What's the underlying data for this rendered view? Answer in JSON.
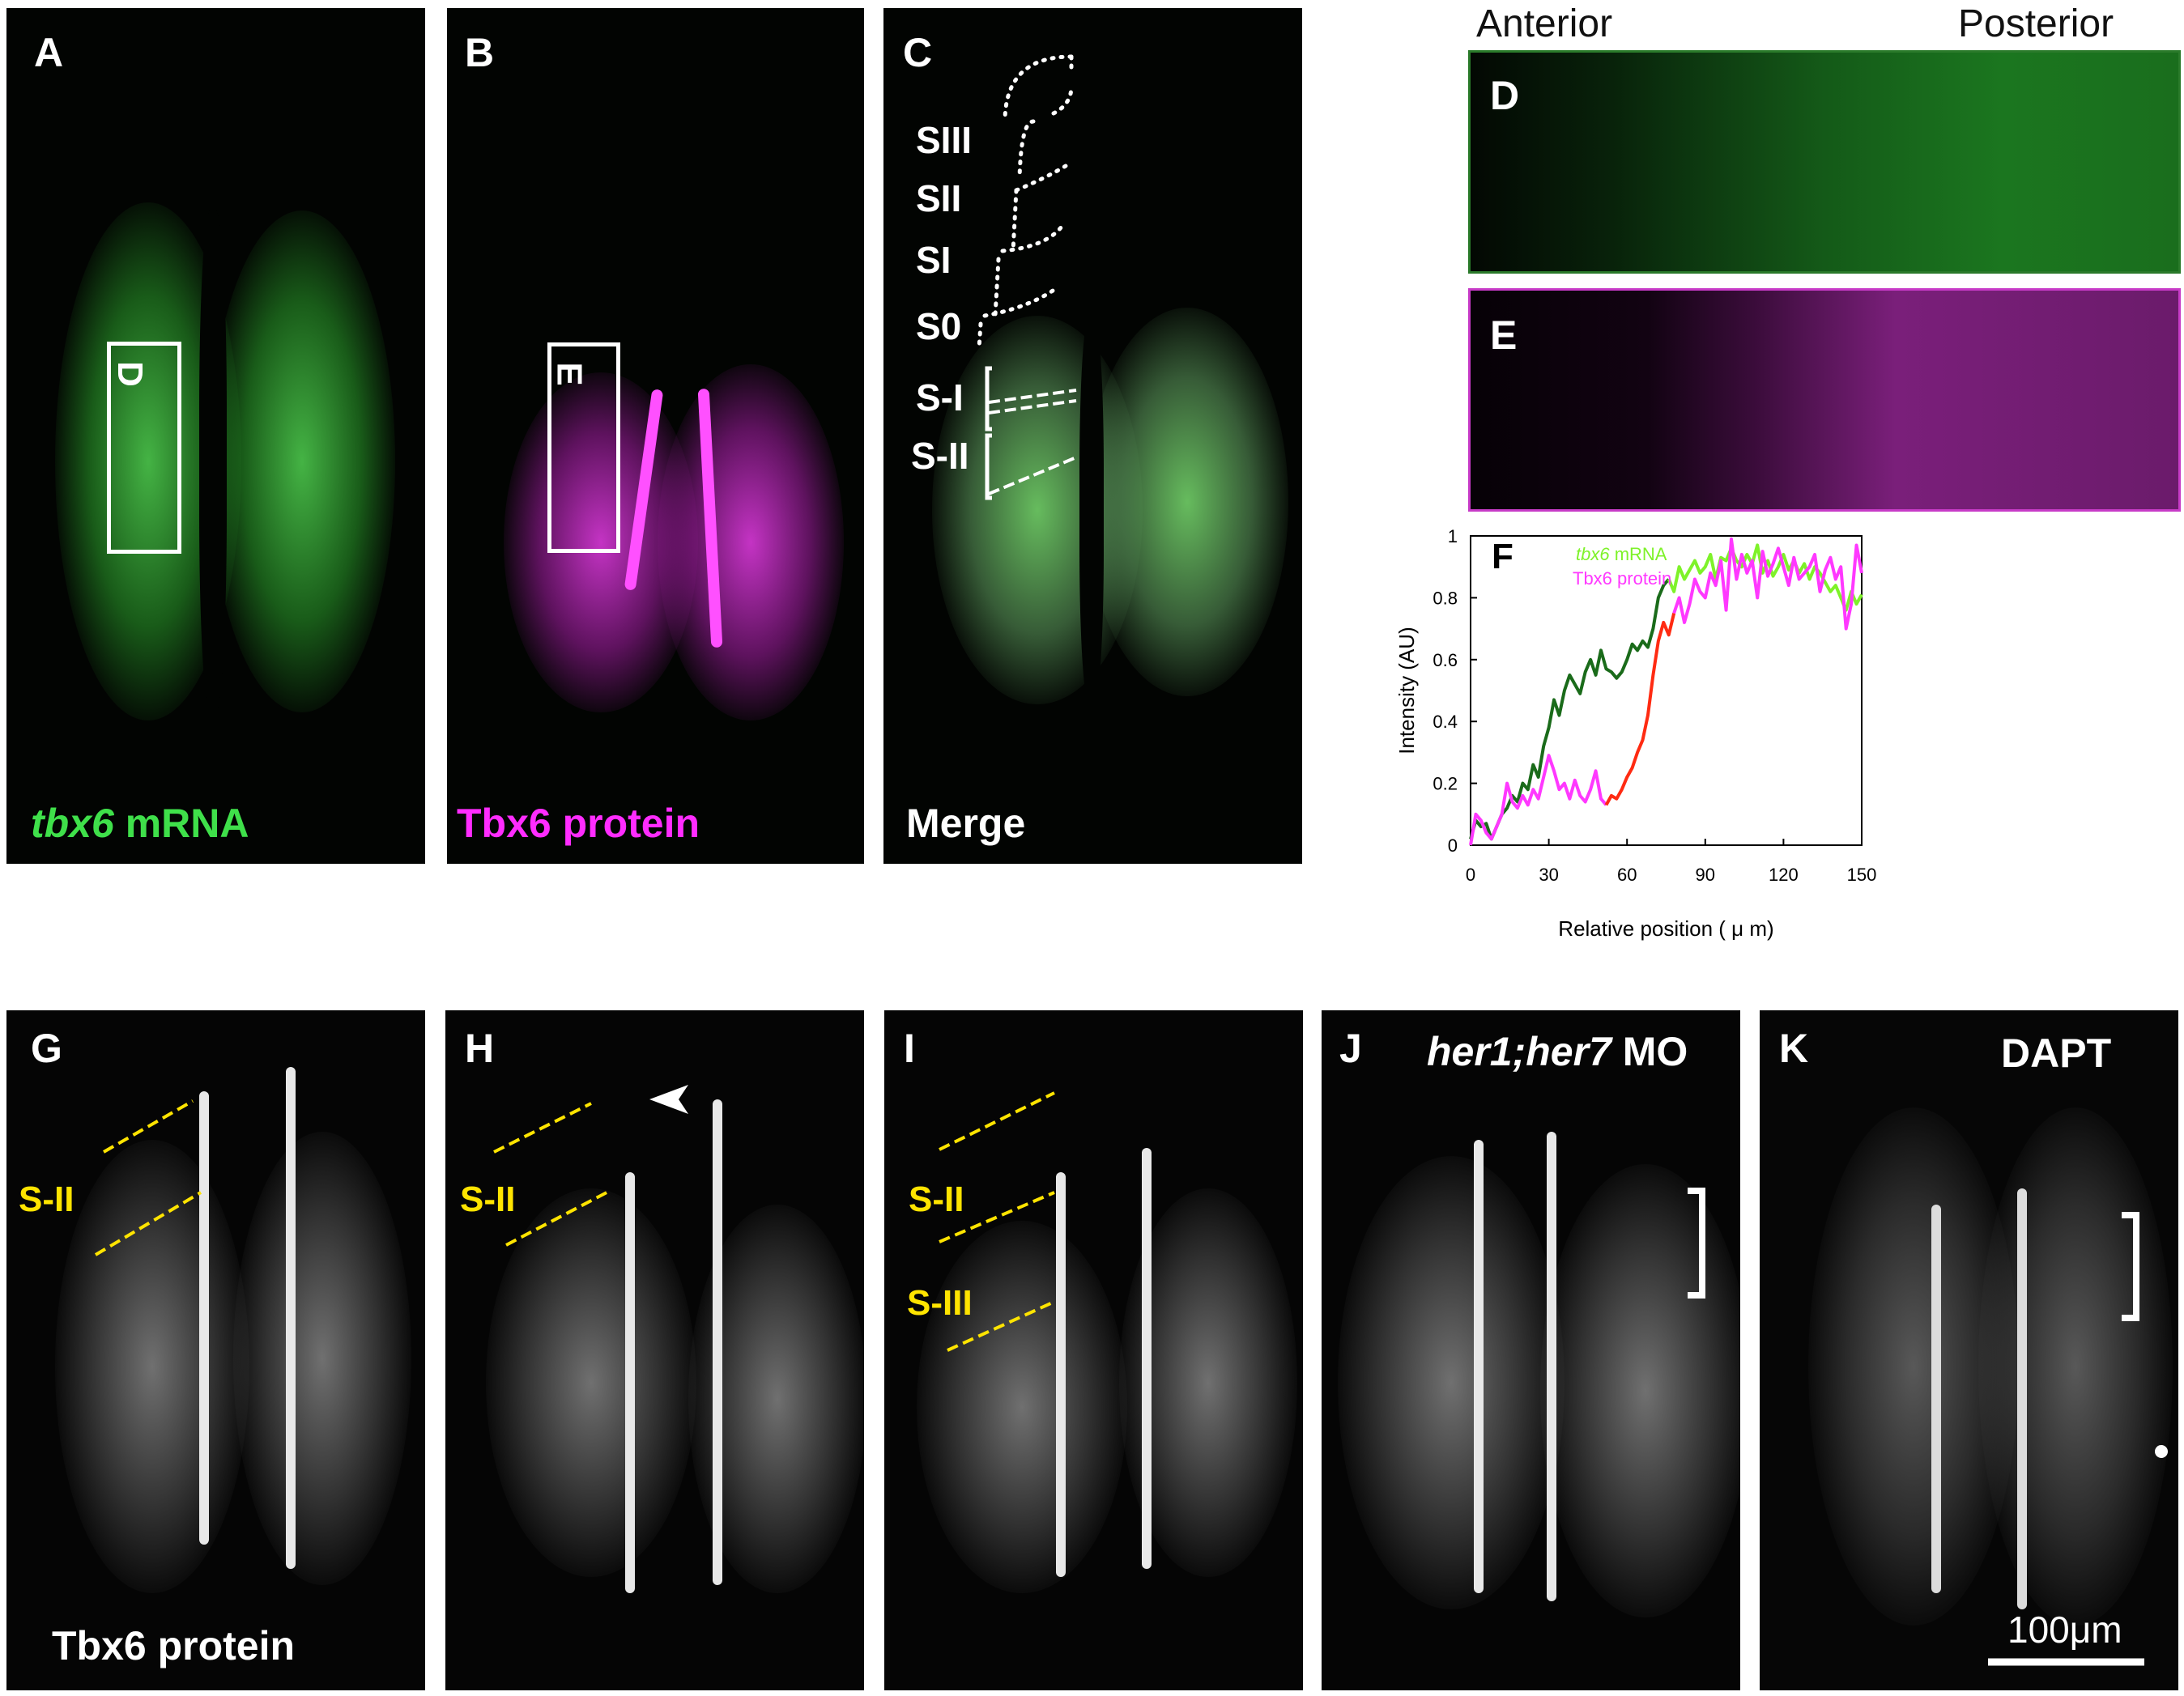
{
  "colors": {
    "green": "#3fe04a",
    "magenta": "#ff2cff",
    "yellow": "#ffe400",
    "line_tbx6_mrna_early": "#1a6b1a",
    "line_tbx6_mrna_late": "#7ef22a",
    "line_tbx6_protein_early": "#ff38ff",
    "line_tbx6_protein_mid": "#ff2b12"
  },
  "panels": {
    "a": {
      "letter": "A",
      "caption_italic": "tbx6",
      "caption_rest": " mRNA",
      "box_label": "D"
    },
    "b": {
      "letter": "B",
      "caption": "Tbx6 protein",
      "box_label": "E"
    },
    "c": {
      "letter": "C",
      "caption": "Merge",
      "somites": [
        "SIII",
        "SII",
        "SI",
        "S0",
        "S-I",
        "S-II"
      ]
    },
    "d": {
      "letter": "D",
      "anterior": "Anterior",
      "posterior": "Posterior"
    },
    "e": {
      "letter": "E"
    },
    "g": {
      "letter": "G",
      "stripe": "S-II",
      "caption": "Tbx6 protein"
    },
    "h": {
      "letter": "H",
      "stripe": "S-II",
      "arrowhead": "arrowhead-icon"
    },
    "i": {
      "letter": "I",
      "stripes": [
        "S-II",
        "S-III"
      ]
    },
    "j": {
      "letter": "J",
      "caption_italic": "her1;her7",
      "caption_rest": " MO",
      "bracket": "bracket-icon"
    },
    "k": {
      "letter": "K",
      "caption": "DAPT",
      "bracket": "bracket-icon",
      "scale": "100μm"
    }
  },
  "chart_data": {
    "type": "line",
    "panel_letter": "F",
    "xlabel": "Relative position ( μ m)",
    "ylabel": "Intensity (AU)",
    "xlim": [
      0,
      150
    ],
    "ylim": [
      0,
      1
    ],
    "xticks": [
      "0",
      "30",
      "60",
      "90",
      "120",
      "150"
    ],
    "yticks": [
      "0",
      "0.2",
      "0.4",
      "0.6",
      "0.8",
      "1"
    ],
    "legend": [
      {
        "italic": "tbx6",
        "rest": " mRNA",
        "color": "#7ef22a"
      },
      {
        "italic": "",
        "rest": "Tbx6 protein",
        "color": "#ff38ff"
      }
    ],
    "series": [
      {
        "name": "tbx6 mRNA",
        "x": [
          0,
          2,
          4,
          6,
          8,
          10,
          12,
          14,
          16,
          18,
          20,
          22,
          24,
          26,
          28,
          30,
          32,
          34,
          36,
          38,
          40,
          42,
          44,
          46,
          48,
          50,
          52,
          54,
          56,
          58,
          60,
          62,
          64,
          66,
          68,
          70,
          72,
          74,
          76,
          78,
          80,
          82,
          84,
          86,
          88,
          90,
          92,
          94,
          96,
          98,
          100,
          102,
          104,
          106,
          108,
          110,
          112,
          114,
          116,
          118,
          120,
          122,
          124,
          126,
          128,
          130,
          132,
          134,
          136,
          138,
          140,
          142,
          144,
          146,
          148,
          150
        ],
        "values": [
          0.02,
          0.08,
          0.06,
          0.07,
          0.02,
          0.06,
          0.1,
          0.12,
          0.16,
          0.14,
          0.2,
          0.18,
          0.26,
          0.22,
          0.32,
          0.38,
          0.47,
          0.42,
          0.5,
          0.55,
          0.52,
          0.49,
          0.56,
          0.6,
          0.55,
          0.63,
          0.57,
          0.56,
          0.54,
          0.56,
          0.6,
          0.65,
          0.63,
          0.66,
          0.64,
          0.7,
          0.8,
          0.84,
          0.86,
          0.82,
          0.9,
          0.86,
          0.89,
          0.92,
          0.88,
          0.9,
          0.94,
          0.86,
          0.93,
          0.92,
          0.96,
          0.92,
          0.9,
          0.94,
          0.91,
          0.97,
          0.88,
          0.92,
          0.87,
          0.9,
          0.94,
          0.89,
          0.92,
          0.88,
          0.91,
          0.86,
          0.9,
          0.88,
          0.85,
          0.82,
          0.84,
          0.8,
          0.76,
          0.82,
          0.78,
          0.81
        ]
      },
      {
        "name": "Tbx6 protein",
        "x": [
          0,
          2,
          4,
          6,
          8,
          10,
          12,
          14,
          16,
          18,
          20,
          22,
          24,
          26,
          28,
          30,
          32,
          34,
          36,
          38,
          40,
          42,
          44,
          46,
          48,
          50,
          52,
          54,
          56,
          58,
          60,
          62,
          64,
          66,
          68,
          70,
          72,
          74,
          76,
          78,
          80,
          82,
          84,
          86,
          88,
          90,
          92,
          94,
          96,
          98,
          100,
          102,
          104,
          106,
          108,
          110,
          112,
          114,
          116,
          118,
          120,
          122,
          124,
          126,
          128,
          130,
          132,
          134,
          136,
          138,
          140,
          142,
          144,
          146,
          148,
          150
        ],
        "values": [
          0.0,
          0.1,
          0.08,
          0.04,
          0.02,
          0.06,
          0.1,
          0.2,
          0.14,
          0.12,
          0.16,
          0.13,
          0.18,
          0.15,
          0.22,
          0.29,
          0.24,
          0.18,
          0.2,
          0.15,
          0.21,
          0.16,
          0.14,
          0.18,
          0.24,
          0.15,
          0.13,
          0.16,
          0.15,
          0.18,
          0.22,
          0.25,
          0.3,
          0.34,
          0.42,
          0.55,
          0.66,
          0.72,
          0.68,
          0.75,
          0.8,
          0.72,
          0.78,
          0.86,
          0.82,
          0.8,
          0.88,
          0.84,
          0.92,
          0.76,
          0.99,
          0.86,
          0.94,
          0.88,
          0.92,
          0.8,
          0.95,
          0.87,
          0.91,
          0.96,
          0.9,
          0.84,
          0.93,
          0.86,
          0.88,
          0.9,
          0.94,
          0.82,
          0.89,
          0.93,
          0.86,
          0.9,
          0.7,
          0.78,
          0.97,
          0.88
        ]
      }
    ]
  }
}
